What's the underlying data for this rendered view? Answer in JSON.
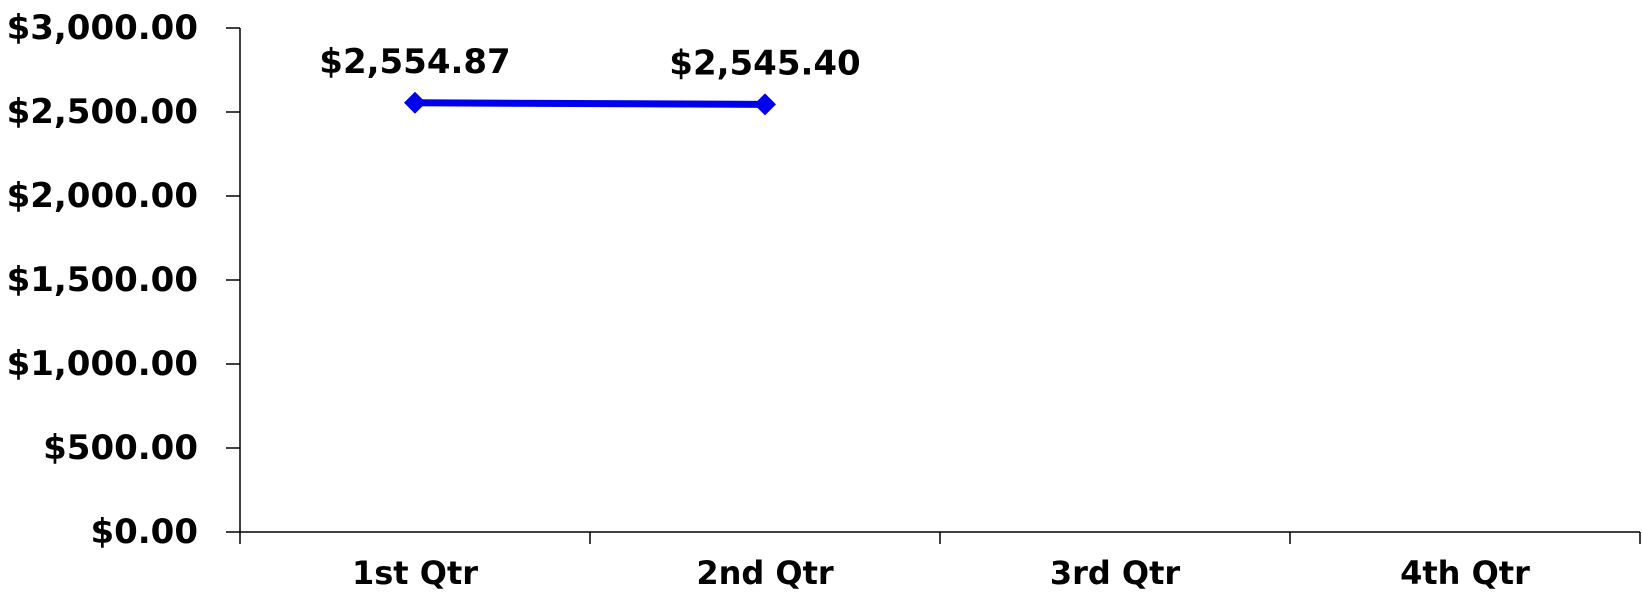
{
  "chart_data": {
    "type": "line",
    "categories": [
      "1st Qtr",
      "2nd Qtr",
      "3rd Qtr",
      "4th Qtr"
    ],
    "series": [
      {
        "values": [
          2554.87,
          2545.4,
          null,
          null
        ],
        "color": "#0000ee",
        "marker": "diamond"
      }
    ],
    "data_labels": [
      "$2,554.87",
      "$2,545.40"
    ],
    "ylim": [
      0,
      3000
    ],
    "y_ticks": [
      0,
      500,
      1000,
      1500,
      2000,
      2500,
      3000
    ],
    "y_tick_labels": [
      "$0.00",
      "$500.00",
      "$1,000.00",
      "$1,500.00",
      "$2,000.00",
      "$2,500.00",
      "$3,000.00"
    ],
    "grid": false,
    "legend": "none",
    "title": "",
    "xlabel": "",
    "ylabel": ""
  }
}
